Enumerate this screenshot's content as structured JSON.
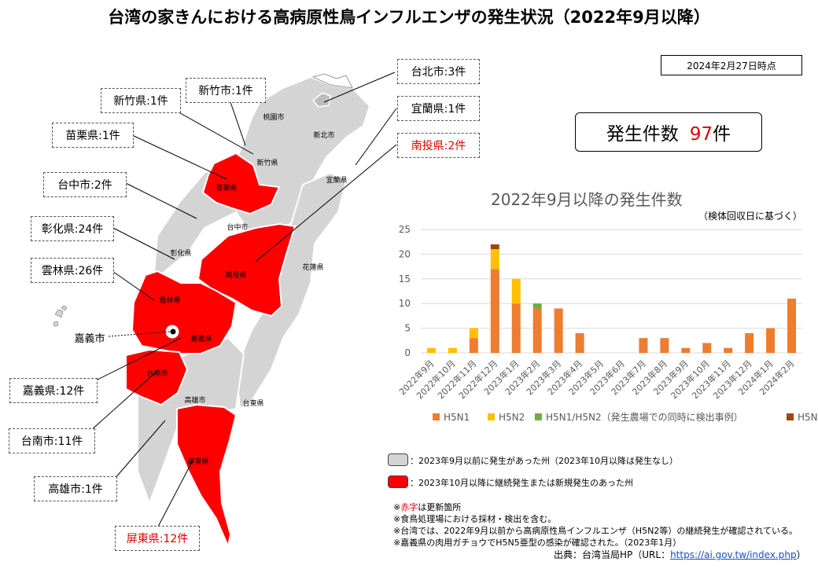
{
  "title": "台湾の家きんにおける高病原性鳥インフルエンザの発生状況（2022年9月以降）",
  "date_label": "2024年2月27日時点",
  "count_label": "発生件数",
  "count_value": "97",
  "count_unit": "件",
  "callouts": {
    "taipei": "台北市:3件",
    "yilan": "宜蘭県:1件",
    "nantou": "南投県:2件",
    "hsinchu_city": "新竹市:1件",
    "hsinchu_county": "新竹県:1件",
    "miaoli": "苗栗県:1件",
    "taichung": "台中市:2件",
    "changhua": "彰化県:24件",
    "yunlin": "雲林県:26件",
    "chiayi_city": "嘉義市",
    "chiayi_county": "嘉義県:12件",
    "tainan": "台南市:11件",
    "kaohsiung": "高雄市:1件",
    "pingtung": "屏東県:12件"
  },
  "map_labels": {
    "taoyuan": "桃園市",
    "new_taipei": "新北市",
    "hsinchu": "新竹県",
    "yilan": "宜蘭県",
    "miaoli": "苗栗県",
    "taichung": "台中市",
    "changhua": "彰化県",
    "nantou": "南投県",
    "hualien": "花蓮県",
    "yunlin": "雲林県",
    "chiayi": "嘉義県",
    "tainan": "台南市",
    "kaohsiung": "高雄市",
    "taitung": "台東県",
    "pingtung": "屏東県"
  },
  "legend": {
    "gray": "：2023年9月以前に発生があった州（2023年10月以降は発生なし）",
    "red": "：2023年10月以降に継続発生または新規発生のあった州"
  },
  "notes": {
    "n1_prefix": "※",
    "n1_red": "赤字",
    "n1_rest": "は更新箇所",
    "n2": "※食鳥処理場における採材・検出を含む。",
    "n3": "※台湾では、2022年9月以前から高病原性鳥インフルエンザ（H5N2等）の継続発生が確認されている。",
    "n4": "※嘉義県の肉用ガチョウでH5N5亜型の感染が確認された。（2023年1月）"
  },
  "source_prefix": "出典：台湾当局HP（URL：",
  "source_url": "https://ai.gov.tw/index.php",
  "source_suffix": "）",
  "colors": {
    "affected_red": "#ff0000",
    "gray_region": "#d4d4d4",
    "h5n1": "#ed7d31",
    "h5n2": "#ffc000",
    "h5n1_h5n2": "#70ad47",
    "h5n5": "#9e480e"
  },
  "chart_data": {
    "type": "bar",
    "stacked": true,
    "title": "2022年9月以降の発生件数",
    "subtitle": "（検体回収日に基づく）",
    "categories": [
      "2022年9月",
      "2022年10月",
      "2022年11月",
      "2022年12月",
      "2023年1月",
      "2023年2月",
      "2023年3月",
      "2023年4月",
      "2023年5月",
      "2023年6月",
      "2023年7月",
      "2023年8月",
      "2023年9月",
      "2023年10月",
      "2023年11月",
      "2023年12月",
      "2024年1月",
      "2024年2月"
    ],
    "series": [
      {
        "name": "H5N1",
        "color": "#ed7d31",
        "values": [
          0,
          0,
          3,
          17,
          10,
          9,
          9,
          4,
          0,
          0,
          3,
          3,
          1,
          2,
          1,
          4,
          5,
          11
        ]
      },
      {
        "name": "H5N2",
        "color": "#ffc000",
        "values": [
          1,
          1,
          2,
          4,
          5,
          0,
          0,
          0,
          0,
          0,
          0,
          0,
          0,
          0,
          0,
          0,
          0,
          0
        ]
      },
      {
        "name": "H5N1/H5N2（発生農場での同時に検出事例）",
        "color": "#70ad47",
        "values": [
          0,
          0,
          0,
          0,
          0,
          1,
          0,
          0,
          0,
          0,
          0,
          0,
          0,
          0,
          0,
          0,
          0,
          0
        ]
      },
      {
        "name": "H5N5",
        "color": "#9e480e",
        "values": [
          0,
          0,
          0,
          1,
          0,
          0,
          0,
          0,
          0,
          0,
          0,
          0,
          0,
          0,
          0,
          0,
          0,
          0
        ]
      }
    ],
    "yticks": [
      "0",
      "5",
      "10",
      "15",
      "20",
      "25"
    ],
    "ylim": [
      0,
      25
    ],
    "grid": true,
    "legend_position": "bottom"
  }
}
